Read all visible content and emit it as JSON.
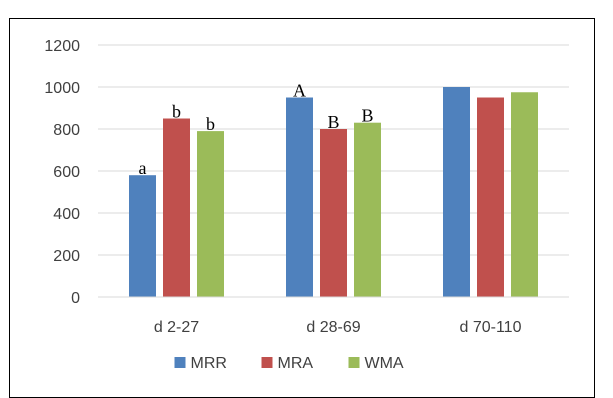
{
  "chart_data": {
    "type": "bar",
    "categories": [
      "d 2-27",
      "d 28-69",
      "d 70-110"
    ],
    "series": [
      {
        "name": "MRR",
        "color": "#4F81BD",
        "values": [
          580,
          950,
          1000
        ],
        "labels": [
          "a",
          "A",
          ""
        ]
      },
      {
        "name": "MRA",
        "color": "#C0504D",
        "values": [
          850,
          800,
          950
        ],
        "labels": [
          "b",
          "B",
          ""
        ]
      },
      {
        "name": "WMA",
        "color": "#9BBB59",
        "values": [
          790,
          830,
          975
        ],
        "labels": [
          "b",
          "B",
          ""
        ]
      }
    ],
    "ylim": [
      0,
      1200
    ],
    "yticks": [
      "0",
      "200",
      "400",
      "600",
      "800",
      "1000",
      "1200"
    ],
    "grid": true,
    "legend_position": "bottom"
  }
}
